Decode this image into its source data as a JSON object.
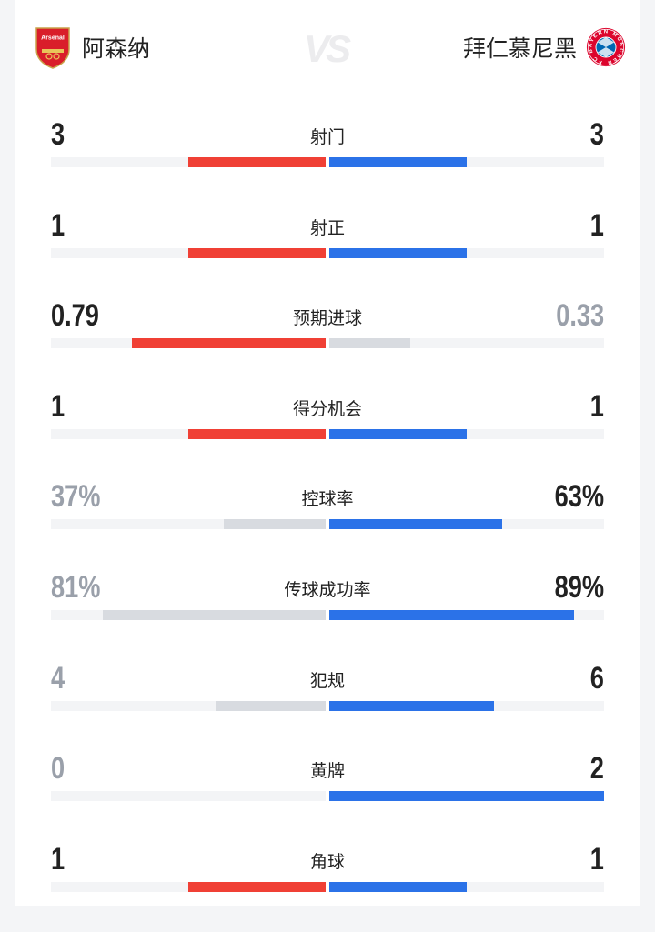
{
  "header": {
    "home_team": "阿森纳",
    "away_team": "拜仁慕尼黑",
    "vs": "VS",
    "home_crest_text": "Arsenal",
    "away_crest_text": "FC BAYERN MÜNCHEN"
  },
  "colors": {
    "home": "#f04035",
    "away": "#2b72e8",
    "muted_bar": "#d8dbe0",
    "track": "#f3f4f6",
    "strong_text": "#222222",
    "muted_text": "#9aa0aa"
  },
  "stats": [
    {
      "label": "射门",
      "home": "3",
      "away": "3",
      "home_fill": 0.5,
      "away_fill": 0.5,
      "home_lead": true,
      "away_lead": true
    },
    {
      "label": "射正",
      "home": "1",
      "away": "1",
      "home_fill": 0.5,
      "away_fill": 0.5,
      "home_lead": true,
      "away_lead": true
    },
    {
      "label": "预期进球",
      "home": "0.79",
      "away": "0.33",
      "home_fill": 0.705,
      "away_fill": 0.295,
      "home_lead": true,
      "away_lead": false
    },
    {
      "label": "得分机会",
      "home": "1",
      "away": "1",
      "home_fill": 0.5,
      "away_fill": 0.5,
      "home_lead": true,
      "away_lead": true
    },
    {
      "label": "控球率",
      "home": "37%",
      "away": "63%",
      "home_fill": 0.37,
      "away_fill": 0.63,
      "home_lead": false,
      "away_lead": true
    },
    {
      "label": "传球成功率",
      "home": "81%",
      "away": "89%",
      "home_fill": 0.81,
      "away_fill": 0.89,
      "home_lead": false,
      "away_lead": true
    },
    {
      "label": "犯规",
      "home": "4",
      "away": "6",
      "home_fill": 0.4,
      "away_fill": 0.6,
      "home_lead": false,
      "away_lead": true
    },
    {
      "label": "黄牌",
      "home": "0",
      "away": "2",
      "home_fill": 0,
      "away_fill": 1,
      "home_lead": false,
      "away_lead": true
    },
    {
      "label": "角球",
      "home": "1",
      "away": "1",
      "home_fill": 0.5,
      "away_fill": 0.5,
      "home_lead": true,
      "away_lead": true
    }
  ]
}
